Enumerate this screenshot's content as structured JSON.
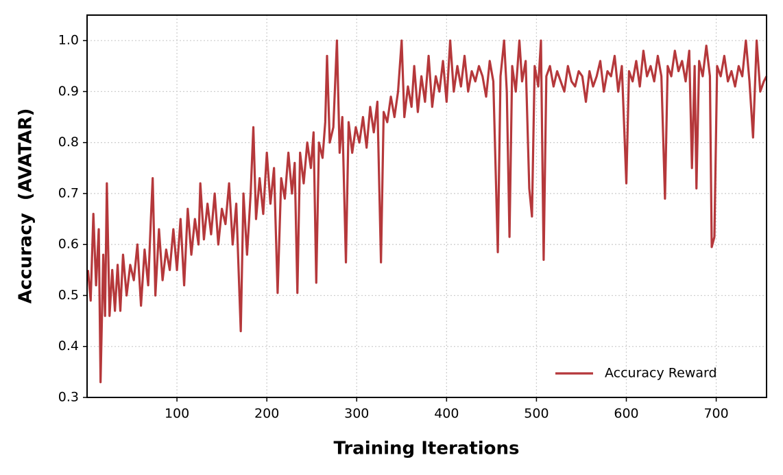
{
  "chart_data": {
    "type": "line",
    "xlabel": "Training Iterations",
    "ylabel": "Accuracy  (AVATAR)",
    "xlim": [
      0,
      756
    ],
    "ylim": [
      0.3,
      1.05
    ],
    "xticks": [
      100,
      200,
      300,
      400,
      500,
      600,
      700
    ],
    "yticks": [
      0.3,
      0.4,
      0.5,
      0.6,
      0.7,
      0.8,
      0.9,
      {
        "value": 1,
        "label": "1.0"
      }
    ],
    "grid": true,
    "legend": "lower right",
    "x": [
      1,
      4,
      7,
      10,
      13,
      15,
      18,
      20,
      22,
      25,
      28,
      31,
      34,
      37,
      40,
      44,
      48,
      52,
      56,
      60,
      64,
      68,
      71,
      73,
      76,
      80,
      84,
      88,
      92,
      96,
      100,
      104,
      108,
      112,
      116,
      120,
      124,
      126,
      130,
      134,
      138,
      142,
      146,
      150,
      154,
      158,
      162,
      166,
      171,
      174,
      178,
      182,
      185,
      188,
      192,
      196,
      200,
      204,
      208,
      212,
      216,
      220,
      224,
      228,
      231,
      234,
      237,
      241,
      245,
      249,
      252,
      255,
      258,
      262,
      265,
      267,
      270,
      274,
      278,
      281,
      284,
      288,
      291,
      295,
      299,
      303,
      307,
      311,
      315,
      319,
      323,
      327,
      330,
      334,
      338,
      342,
      346,
      350,
      353,
      357,
      361,
      364,
      368,
      372,
      376,
      380,
      384,
      388,
      392,
      396,
      400,
      404,
      408,
      412,
      416,
      420,
      424,
      428,
      432,
      436,
      440,
      444,
      448,
      452,
      457,
      460,
      464,
      467,
      470,
      473,
      477,
      481,
      484,
      488,
      492,
      495,
      498,
      502,
      505,
      508,
      511,
      515,
      519,
      523,
      527,
      531,
      535,
      539,
      543,
      547,
      551,
      555,
      559,
      563,
      567,
      571,
      575,
      579,
      583,
      587,
      591,
      595,
      600,
      603,
      607,
      611,
      615,
      619,
      623,
      627,
      631,
      635,
      639,
      643,
      646,
      650,
      654,
      658,
      662,
      666,
      670,
      673,
      676,
      678,
      681,
      685,
      689,
      693,
      695,
      698,
      701,
      705,
      709,
      713,
      717,
      721,
      725,
      729,
      733,
      737,
      741,
      745,
      749,
      753,
      756
    ],
    "series": [
      {
        "name": "Accuracy Reward",
        "color": "#b5383b",
        "values": [
          0.55,
          0.49,
          0.66,
          0.52,
          0.63,
          0.33,
          0.58,
          0.46,
          0.72,
          0.46,
          0.55,
          0.47,
          0.56,
          0.47,
          0.58,
          0.5,
          0.56,
          0.53,
          0.6,
          0.48,
          0.59,
          0.52,
          0.65,
          0.73,
          0.5,
          0.63,
          0.53,
          0.59,
          0.55,
          0.63,
          0.55,
          0.65,
          0.52,
          0.67,
          0.58,
          0.65,
          0.6,
          0.72,
          0.61,
          0.68,
          0.62,
          0.7,
          0.6,
          0.67,
          0.64,
          0.72,
          0.6,
          0.68,
          0.43,
          0.7,
          0.58,
          0.7,
          0.83,
          0.65,
          0.73,
          0.66,
          0.78,
          0.68,
          0.75,
          0.505,
          0.73,
          0.69,
          0.78,
          0.7,
          0.76,
          0.505,
          0.78,
          0.72,
          0.8,
          0.75,
          0.82,
          0.525,
          0.8,
          0.77,
          0.84,
          0.97,
          0.8,
          0.83,
          1.0,
          0.78,
          0.85,
          0.565,
          0.84,
          0.78,
          0.83,
          0.8,
          0.85,
          0.79,
          0.87,
          0.82,
          0.88,
          0.565,
          0.86,
          0.84,
          0.89,
          0.85,
          0.9,
          1.0,
          0.85,
          0.91,
          0.87,
          0.95,
          0.86,
          0.93,
          0.88,
          0.97,
          0.87,
          0.93,
          0.9,
          0.96,
          0.88,
          1.0,
          0.9,
          0.95,
          0.91,
          0.97,
          0.9,
          0.94,
          0.92,
          0.95,
          0.93,
          0.89,
          0.96,
          0.92,
          0.585,
          0.93,
          1.0,
          0.9,
          0.615,
          0.95,
          0.9,
          1.0,
          0.92,
          0.96,
          0.71,
          0.655,
          0.95,
          0.91,
          1.0,
          0.57,
          0.93,
          0.95,
          0.91,
          0.94,
          0.92,
          0.9,
          0.95,
          0.92,
          0.91,
          0.94,
          0.93,
          0.88,
          0.94,
          0.91,
          0.93,
          0.96,
          0.9,
          0.94,
          0.93,
          0.97,
          0.9,
          0.95,
          0.72,
          0.94,
          0.92,
          0.96,
          0.91,
          0.98,
          0.93,
          0.95,
          0.92,
          0.97,
          0.93,
          0.69,
          0.95,
          0.93,
          0.98,
          0.94,
          0.96,
          0.92,
          0.98,
          0.75,
          0.95,
          0.71,
          0.96,
          0.93,
          0.99,
          0.93,
          0.595,
          0.615,
          0.95,
          0.93,
          0.97,
          0.92,
          0.94,
          0.91,
          0.95,
          0.93,
          1.0,
          0.92,
          0.81,
          1.0,
          0.9,
          0.92,
          0.93
        ]
      }
    ]
  }
}
